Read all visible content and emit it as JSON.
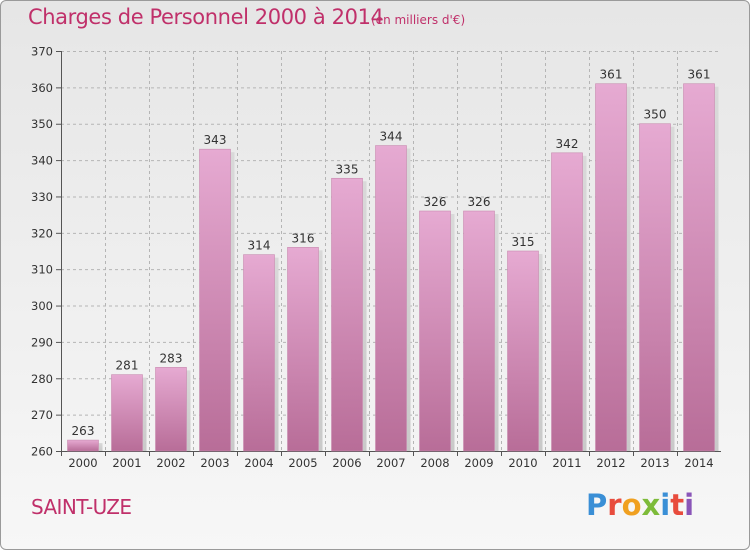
{
  "header": {
    "title": "Charges de Personnel 2000 à 2014",
    "subtitle": "(en milliers d'€)"
  },
  "footer": {
    "commune": "SAINT-UZE",
    "logo_text": "Proxiti"
  },
  "colors": {
    "bar_top": "#e6aad2",
    "bar_bottom": "#b86d98",
    "title": "#c0306a",
    "grid": "#b5b5b5",
    "logo_letters": [
      "#3a8fd6",
      "#e84c3d",
      "#f0a020",
      "#7dbb3a",
      "#3a8fd6",
      "#e84c3d",
      "#8a55b8"
    ]
  },
  "chart_data": {
    "type": "bar",
    "title": "Charges de Personnel 2000 à 2014",
    "subtitle": "(en milliers d'€)",
    "categories": [
      "2000",
      "2001",
      "2002",
      "2003",
      "2004",
      "2005",
      "2006",
      "2007",
      "2008",
      "2009",
      "2010",
      "2011",
      "2012",
      "2013",
      "2014"
    ],
    "values": [
      263,
      281,
      283,
      343,
      314,
      316,
      335,
      344,
      326,
      326,
      315,
      342,
      361,
      350,
      361
    ],
    "ylim": [
      260,
      370
    ],
    "yticks": [
      260,
      270,
      280,
      290,
      300,
      310,
      320,
      330,
      340,
      350,
      360,
      370
    ],
    "grid": true,
    "grid_axis": "y",
    "data_labels": true
  }
}
